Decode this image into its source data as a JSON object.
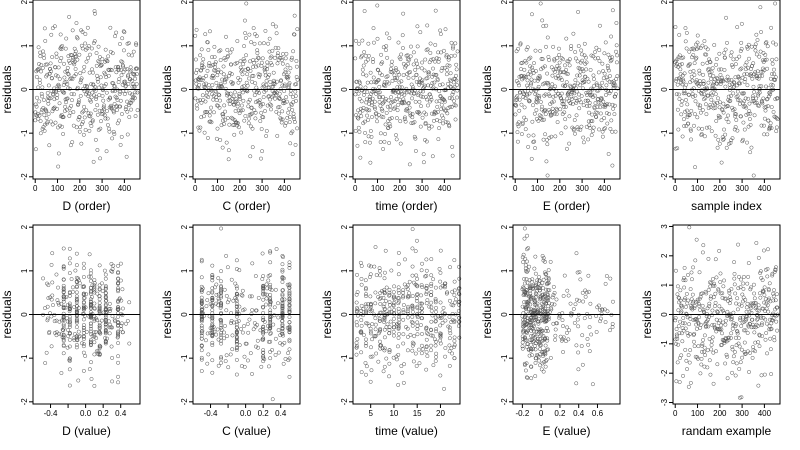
{
  "chart_data": [
    {
      "type": "scatter",
      "xlabel": "D (order)",
      "ylabel": "residuals",
      "xlim": [
        -10,
        470
      ],
      "ylim": [
        -2.05,
        2.05
      ],
      "xticks": [
        0,
        100,
        200,
        300,
        400
      ],
      "yticks": [
        -2,
        -1,
        0,
        1,
        2
      ],
      "refline_y": 0,
      "generator": {
        "kind": "order",
        "n": 460,
        "sd": 0.62,
        "seed": 11
      }
    },
    {
      "type": "scatter",
      "xlabel": "C (order)",
      "ylabel": "residuals",
      "xlim": [
        -10,
        470
      ],
      "ylim": [
        -2.05,
        2.05
      ],
      "xticks": [
        0,
        100,
        200,
        300,
        400
      ],
      "yticks": [
        -2,
        -1,
        0,
        1,
        2
      ],
      "refline_y": 0,
      "generator": {
        "kind": "order",
        "n": 460,
        "sd": 0.62,
        "seed": 23
      }
    },
    {
      "type": "scatter",
      "xlabel": "time (order)",
      "ylabel": "residuals",
      "xlim": [
        -10,
        470
      ],
      "ylim": [
        -2.05,
        2.05
      ],
      "xticks": [
        0,
        100,
        200,
        300,
        400
      ],
      "yticks": [
        -2,
        -1,
        0,
        1,
        2
      ],
      "refline_y": 0,
      "generator": {
        "kind": "order",
        "n": 460,
        "sd": 0.62,
        "seed": 37
      }
    },
    {
      "type": "scatter",
      "xlabel": "E (order)",
      "ylabel": "residuals",
      "xlim": [
        -10,
        470
      ],
      "ylim": [
        -2.05,
        2.05
      ],
      "xticks": [
        0,
        100,
        200,
        300,
        400
      ],
      "yticks": [
        -2,
        -1,
        0,
        1,
        2
      ],
      "refline_y": 0,
      "generator": {
        "kind": "order",
        "n": 460,
        "sd": 0.62,
        "seed": 41
      }
    },
    {
      "type": "scatter",
      "xlabel": "sample index",
      "ylabel": "residuals",
      "xlim": [
        -10,
        470
      ],
      "ylim": [
        -2.05,
        2.05
      ],
      "xticks": [
        0,
        100,
        200,
        300,
        400
      ],
      "yticks": [
        -2,
        -1,
        0,
        1,
        2
      ],
      "refline_y": 0,
      "generator": {
        "kind": "order",
        "n": 460,
        "sd": 0.62,
        "seed": 53
      }
    },
    {
      "type": "scatter",
      "xlabel": "D (value)",
      "ylabel": "residuals",
      "xlim": [
        -0.6,
        0.62
      ],
      "ylim": [
        -2.05,
        2.05
      ],
      "xticks": [
        -0.4,
        -0.2,
        0.0,
        0.2,
        0.4
      ],
      "xtick_labels": [
        "-0.4",
        "",
        "0.0",
        "0.2",
        "0.4"
      ],
      "yticks": [
        -2,
        -1,
        0,
        1,
        2
      ],
      "refline_y": 0,
      "generator": {
        "kind": "value",
        "n": 460,
        "sd": 0.62,
        "seed": 61,
        "lo": -0.5,
        "hi": 0.5,
        "levels": [
          -0.25,
          -0.18,
          -0.1,
          -0.02,
          0.06,
          0.1,
          0.16,
          0.23,
          0.37
        ]
      }
    },
    {
      "type": "scatter",
      "xlabel": "C (value)",
      "ylabel": "residuals",
      "xlim": [
        -0.6,
        0.62
      ],
      "ylim": [
        -2.05,
        2.05
      ],
      "xticks": [
        -0.4,
        -0.2,
        0.0,
        0.2,
        0.4
      ],
      "xtick_labels": [
        "-0.4",
        "",
        "0.0",
        "0.2",
        "0.4"
      ],
      "yticks": [
        -2,
        -1,
        0,
        1,
        2
      ],
      "refline_y": 0,
      "generator": {
        "kind": "value",
        "n": 460,
        "sd": 0.62,
        "seed": 73,
        "lo": -0.5,
        "hi": 0.5,
        "levels": [
          -0.5,
          -0.38,
          -0.28,
          -0.1,
          0.2,
          0.28,
          0.42,
          0.5
        ]
      }
    },
    {
      "type": "scatter",
      "xlabel": "time (value)",
      "ylabel": "residuals",
      "xlim": [
        1.2,
        24.2
      ],
      "ylim": [
        -2.05,
        2.05
      ],
      "xticks": [
        5,
        10,
        15,
        20
      ],
      "yticks": [
        -2,
        -1,
        0,
        1,
        2
      ],
      "refline_y": 0,
      "generator": {
        "kind": "value",
        "n": 460,
        "sd": 0.62,
        "seed": 83,
        "lo": 2,
        "hi": 24,
        "levels": [
          2,
          3,
          4,
          5,
          6,
          7,
          8,
          9,
          10,
          11,
          12,
          13,
          14,
          15,
          16,
          17,
          18,
          19,
          20,
          21,
          22,
          23,
          24
        ]
      }
    },
    {
      "type": "scatter",
      "xlabel": "E (value)",
      "ylabel": "residuals",
      "xlim": [
        -0.3,
        0.84
      ],
      "ylim": [
        -2.05,
        2.05
      ],
      "xticks": [
        -0.2,
        0.0,
        0.2,
        0.4,
        0.6
      ],
      "yticks": [
        -2,
        -1,
        0,
        1,
        2
      ],
      "refline_y": 0,
      "generator": {
        "kind": "value",
        "n": 460,
        "sd": 0.62,
        "seed": 97,
        "lo": -0.25,
        "hi": 0.8,
        "skew": true
      }
    },
    {
      "type": "scatter",
      "xlabel": "randam example",
      "ylabel": "residuals",
      "xlim": [
        -10,
        470
      ],
      "ylim": [
        -3.05,
        3.05
      ],
      "xticks": [
        0,
        100,
        200,
        300,
        400
      ],
      "yticks": [
        -3,
        -2,
        -1,
        0,
        1,
        2,
        3
      ],
      "refline_y": 0,
      "generator": {
        "kind": "order",
        "n": 460,
        "sd": 1.0,
        "seed": 107
      }
    }
  ]
}
